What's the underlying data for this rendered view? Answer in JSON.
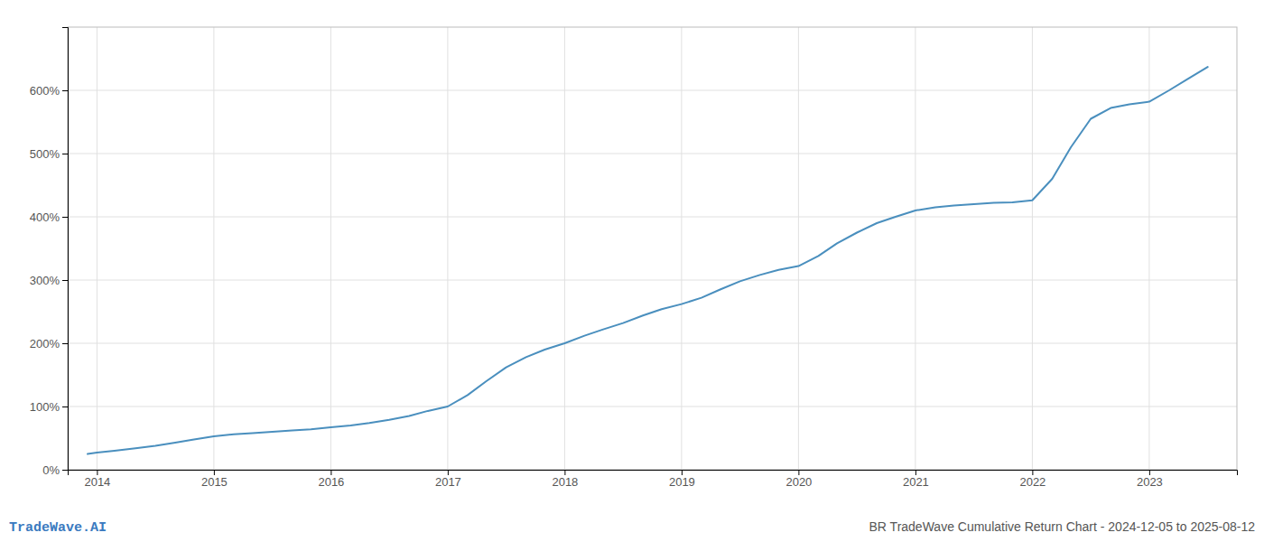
{
  "chart_data": {
    "type": "line",
    "title": "BR TradeWave Cumulative Return Chart - 2024-12-05 to 2025-08-12",
    "annotations": [
      "TradeWave.AI"
    ],
    "color": "#4a8fbe",
    "grid": true,
    "x": [
      2013.92,
      2014.0,
      2014.15,
      2014.33,
      2014.5,
      2014.67,
      2014.83,
      2015.0,
      2015.17,
      2015.33,
      2015.5,
      2015.67,
      2015.83,
      2016.0,
      2016.17,
      2016.33,
      2016.5,
      2016.67,
      2016.83,
      2017.0,
      2017.17,
      2017.33,
      2017.5,
      2017.67,
      2017.83,
      2018.0,
      2018.17,
      2018.33,
      2018.5,
      2018.67,
      2018.83,
      2019.0,
      2019.17,
      2019.33,
      2019.5,
      2019.67,
      2019.83,
      2020.0,
      2020.17,
      2020.33,
      2020.5,
      2020.67,
      2020.83,
      2021.0,
      2021.17,
      2021.33,
      2021.5,
      2021.67,
      2021.83,
      2022.0,
      2022.17,
      2022.33,
      2022.5,
      2022.67,
      2022.83,
      2023.0,
      2023.17,
      2023.33,
      2023.5
    ],
    "values": [
      25,
      27,
      30,
      34,
      38,
      43,
      48,
      53,
      56,
      58,
      60,
      62,
      64,
      67,
      70,
      74,
      79,
      85,
      93,
      100,
      118,
      140,
      162,
      178,
      190,
      200,
      212,
      222,
      232,
      244,
      254,
      262,
      272,
      285,
      298,
      308,
      316,
      322,
      338,
      358,
      375,
      390,
      400,
      410,
      415,
      418,
      420,
      422,
      423,
      426,
      460,
      510,
      555,
      572,
      578,
      582,
      600,
      618,
      637
    ],
    "xlim": [
      2013.75,
      2023.75
    ],
    "xticks": [
      2014,
      2015,
      2016,
      2017,
      2018,
      2019,
      2020,
      2021,
      2022,
      2023
    ],
    "ylim": [
      0,
      700
    ],
    "yticks": [
      {
        "value": 0,
        "label": "0%"
      },
      {
        "value": 100,
        "label": "100%"
      },
      {
        "value": 200,
        "label": "200%"
      },
      {
        "value": 300,
        "label": "300%"
      },
      {
        "value": 400,
        "label": "400%"
      },
      {
        "value": 500,
        "label": "500%"
      },
      {
        "value": 600,
        "label": "600%"
      }
    ]
  }
}
